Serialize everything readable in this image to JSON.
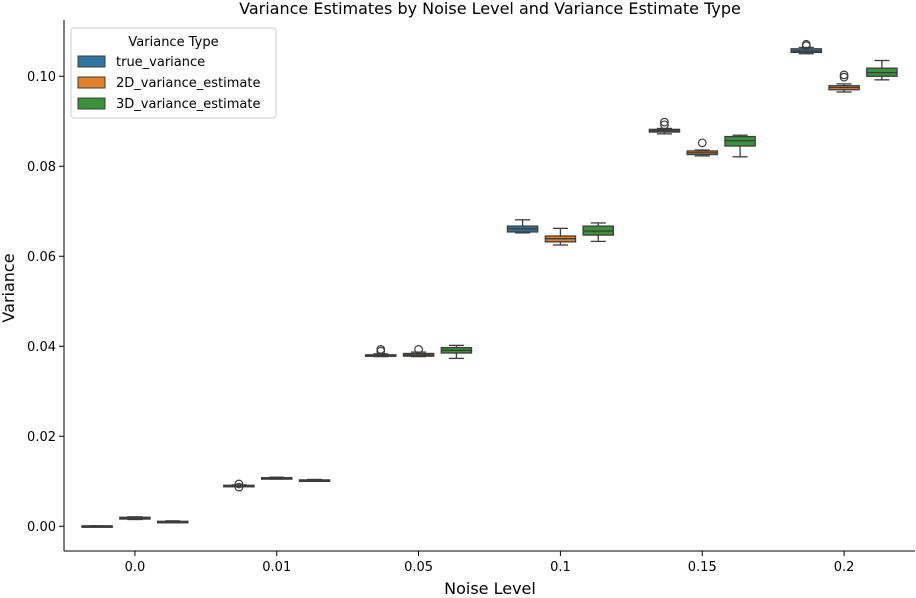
{
  "chart_data": {
    "type": "boxplot",
    "title": "Variance Estimates by Noise Level and Variance Estimate Type",
    "xlabel": "Noise Level",
    "ylabel": "Variance",
    "ylim": [
      -0.0055,
      0.1125
    ],
    "yticks": [
      0.0,
      0.02,
      0.04,
      0.06,
      0.08,
      0.1
    ],
    "ytick_labels": [
      "0.00",
      "0.02",
      "0.04",
      "0.06",
      "0.08",
      "0.10"
    ],
    "categories": [
      "0.0",
      "0.01",
      "0.05",
      "0.1",
      "0.15",
      "0.2"
    ],
    "legend": {
      "title": "Variance Type",
      "position": "upper-left"
    },
    "series": [
      {
        "name": "true_variance",
        "color": "#3274a1",
        "boxes": [
          {
            "whislo": -0.0001,
            "q1": -0.0001,
            "med": 0.0,
            "q3": 0.0001,
            "whishi": 0.0001,
            "fliers": []
          },
          {
            "whislo": 0.0089,
            "q1": 0.0089,
            "med": 0.009,
            "q3": 0.0091,
            "whishi": 0.0092,
            "fliers": [
              0.0087,
              0.0094
            ]
          },
          {
            "whislo": 0.0377,
            "q1": 0.0378,
            "med": 0.038,
            "q3": 0.0381,
            "whishi": 0.0383,
            "fliers": [
              0.0389,
              0.0393
            ]
          },
          {
            "whislo": 0.0652,
            "q1": 0.0654,
            "med": 0.0661,
            "q3": 0.0667,
            "whishi": 0.0681,
            "fliers": []
          },
          {
            "whislo": 0.0872,
            "q1": 0.0876,
            "med": 0.0879,
            "q3": 0.0882,
            "whishi": 0.0884,
            "fliers": [
              0.0892,
              0.0898
            ]
          },
          {
            "whislo": 0.105,
            "q1": 0.1053,
            "med": 0.1056,
            "q3": 0.1061,
            "whishi": 0.1064,
            "fliers": [
              0.1068,
              0.1071
            ]
          }
        ]
      },
      {
        "name": "2D_variance_estimate",
        "color": "#e1812c",
        "boxes": [
          {
            "whislo": 0.0015,
            "q1": 0.0016,
            "med": 0.0018,
            "q3": 0.002,
            "whishi": 0.0021,
            "fliers": []
          },
          {
            "whislo": 0.0105,
            "q1": 0.0106,
            "med": 0.0107,
            "q3": 0.0108,
            "whishi": 0.0109,
            "fliers": []
          },
          {
            "whislo": 0.0377,
            "q1": 0.0378,
            "med": 0.0381,
            "q3": 0.0384,
            "whishi": 0.0387,
            "fliers": [
              0.0393
            ]
          },
          {
            "whislo": 0.0625,
            "q1": 0.0632,
            "med": 0.0639,
            "q3": 0.0645,
            "whishi": 0.0662,
            "fliers": []
          },
          {
            "whislo": 0.0823,
            "q1": 0.0826,
            "med": 0.083,
            "q3": 0.0834,
            "whishi": 0.0836,
            "fliers": [
              0.0852
            ]
          },
          {
            "whislo": 0.0965,
            "q1": 0.097,
            "med": 0.0975,
            "q3": 0.0979,
            "whishi": 0.0983,
            "fliers": [
              0.0998,
              0.1003
            ]
          }
        ]
      },
      {
        "name": "3D_variance_estimate",
        "color": "#3a923a",
        "boxes": [
          {
            "whislo": 0.0008,
            "q1": 0.0009,
            "med": 0.001,
            "q3": 0.0011,
            "whishi": 0.0012,
            "fliers": []
          },
          {
            "whislo": 0.01,
            "q1": 0.0101,
            "med": 0.0102,
            "q3": 0.0103,
            "whishi": 0.0104,
            "fliers": []
          },
          {
            "whislo": 0.0373,
            "q1": 0.0385,
            "med": 0.0391,
            "q3": 0.0397,
            "whishi": 0.0402,
            "fliers": []
          },
          {
            "whislo": 0.0633,
            "q1": 0.0647,
            "med": 0.0656,
            "q3": 0.0667,
            "whishi": 0.0674,
            "fliers": []
          },
          {
            "whislo": 0.0821,
            "q1": 0.0845,
            "med": 0.0857,
            "q3": 0.0866,
            "whishi": 0.0869,
            "fliers": []
          },
          {
            "whislo": 0.0992,
            "q1": 0.1,
            "med": 0.1008,
            "q3": 0.1018,
            "whishi": 0.1035,
            "fliers": []
          }
        ]
      }
    ]
  }
}
